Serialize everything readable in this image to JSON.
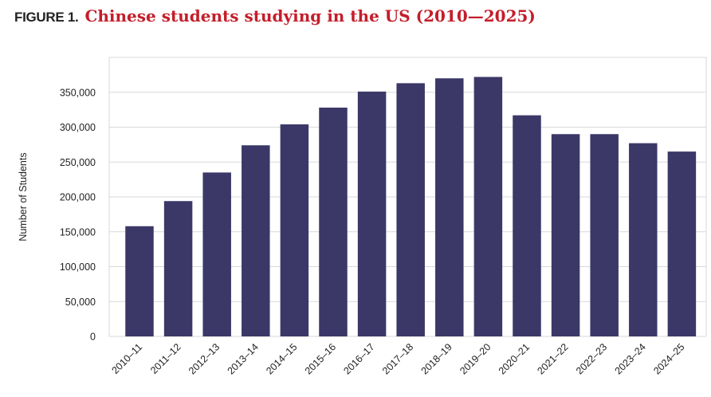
{
  "figure": {
    "label": "FIGURE 1.",
    "title": "Chinese students studying in the US (2010—2025)"
  },
  "colors": {
    "bar": "#3b3868",
    "grid": "#d9d9d9",
    "title": "#c41e2a"
  },
  "chart_data": {
    "type": "bar",
    "title": "Chinese students studying in the US (2010—2025)",
    "xlabel": "",
    "ylabel": "Number of Students",
    "ylim": [
      0,
      400000
    ],
    "yticks": [
      0,
      50000,
      100000,
      150000,
      200000,
      250000,
      300000,
      350000
    ],
    "ytick_labels": [
      "0",
      "50,000",
      "100,000",
      "150,000",
      "200,000",
      "250,000",
      "300,000",
      "350,000"
    ],
    "grid": true,
    "legend": "none",
    "categories": [
      "2010–11",
      "2011–12",
      "2012–13",
      "2013–14",
      "2014–15",
      "2015–16",
      "2016–17",
      "2017–18",
      "2018–19",
      "2019–20",
      "2020–21",
      "2021–22",
      "2022–23",
      "2023–24",
      "2024–25"
    ],
    "values": [
      158000,
      194000,
      235000,
      274000,
      304000,
      328000,
      351000,
      363000,
      370000,
      372000,
      317000,
      290000,
      290000,
      277000,
      265000
    ]
  }
}
